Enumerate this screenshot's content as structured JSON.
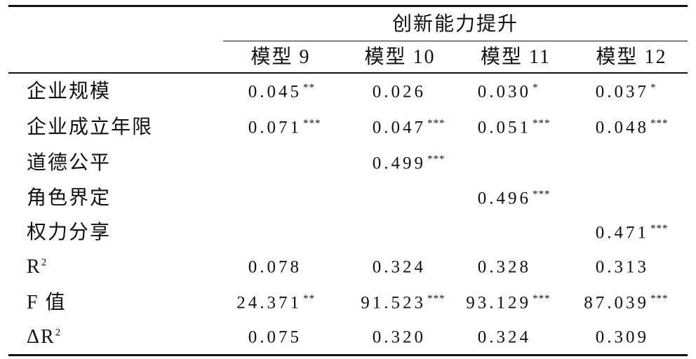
{
  "table": {
    "group_header": "创新能力提升",
    "columns": [
      "模型 9",
      "模型 10",
      "模型 11",
      "模型 12"
    ],
    "rows": [
      {
        "label": {
          "text": "企业规模"
        },
        "cells": [
          {
            "value": "0.045",
            "stars": "**"
          },
          {
            "value": "0.026"
          },
          {
            "value": "0.030",
            "stars": "*"
          },
          {
            "value": "0.037",
            "stars": "*"
          }
        ]
      },
      {
        "label": {
          "text": "企业成立年限"
        },
        "cells": [
          {
            "value": "0.071",
            "stars": "***"
          },
          {
            "value": "0.047",
            "stars": "***"
          },
          {
            "value": "0.051",
            "stars": "***"
          },
          {
            "value": "0.048",
            "stars": "***"
          }
        ]
      },
      {
        "label": {
          "text": "道德公平"
        },
        "cells": [
          null,
          {
            "value": "0.499",
            "stars": "***"
          },
          null,
          null
        ]
      },
      {
        "label": {
          "text": "角色界定"
        },
        "cells": [
          null,
          null,
          {
            "value": "0.496",
            "stars": "***"
          },
          null
        ]
      },
      {
        "label": {
          "text": "权力分享"
        },
        "cells": [
          null,
          null,
          null,
          {
            "value": "0.471",
            "stars": "***"
          }
        ]
      },
      {
        "label": {
          "text": "R",
          "sup": "2"
        },
        "cells": [
          {
            "value": "0.078"
          },
          {
            "value": "0.324"
          },
          {
            "value": "0.328"
          },
          {
            "value": "0.313"
          }
        ]
      },
      {
        "label": {
          "text": "F 值"
        },
        "cells": [
          {
            "value": "24.371",
            "stars": "**"
          },
          {
            "value": "91.523",
            "stars": "***"
          },
          {
            "value": "93.129",
            "stars": "***"
          },
          {
            "value": "87.039",
            "stars": "***"
          }
        ]
      },
      {
        "label": {
          "text": "ΔR",
          "sup": "2"
        },
        "cells": [
          {
            "value": "0.075"
          },
          {
            "value": "0.320"
          },
          {
            "value": "0.324"
          },
          {
            "value": "0.309"
          }
        ]
      }
    ]
  }
}
